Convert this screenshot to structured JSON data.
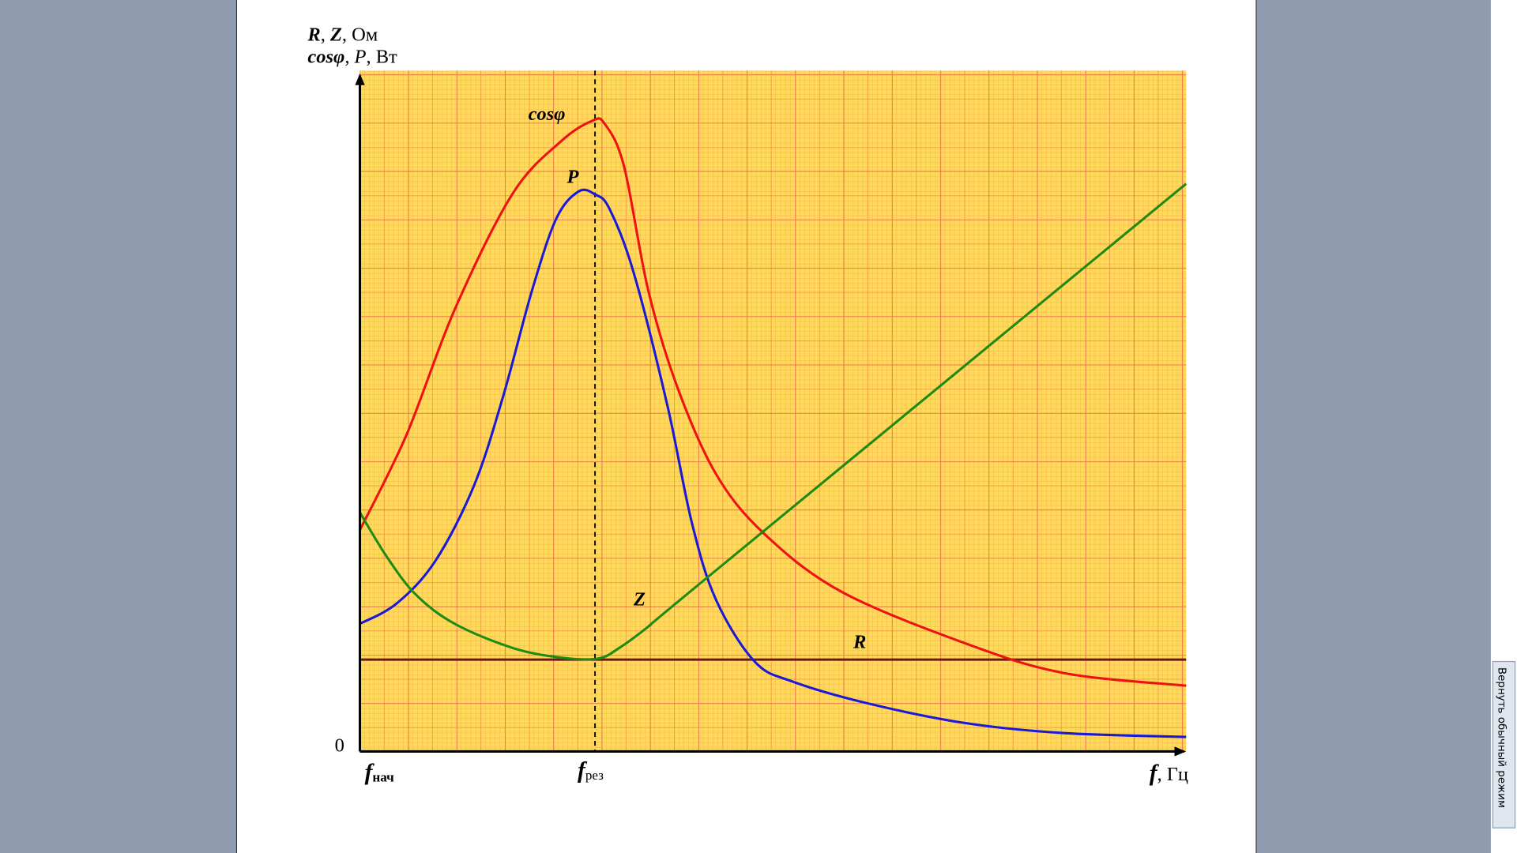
{
  "chart": {
    "y_label_line1": [
      "R",
      ",  ",
      "Z",
      ", Ом"
    ],
    "y_label_line2": [
      "cosφ",
      ", ",
      "P",
      ", Вт"
    ],
    "origin": "0",
    "curve_labels": {
      "cos": "cosφ",
      "power": "P",
      "impedance": "Z",
      "resistance": "R"
    },
    "x_start": {
      "symbol": "f",
      "subscript": "нач"
    },
    "x_resonance": {
      "symbol": "f",
      "subscript": "рез"
    },
    "x_axis_label": [
      "f",
      ", Гц"
    ]
  },
  "sidebar": {
    "button": "Вернуть обычный режим"
  }
}
